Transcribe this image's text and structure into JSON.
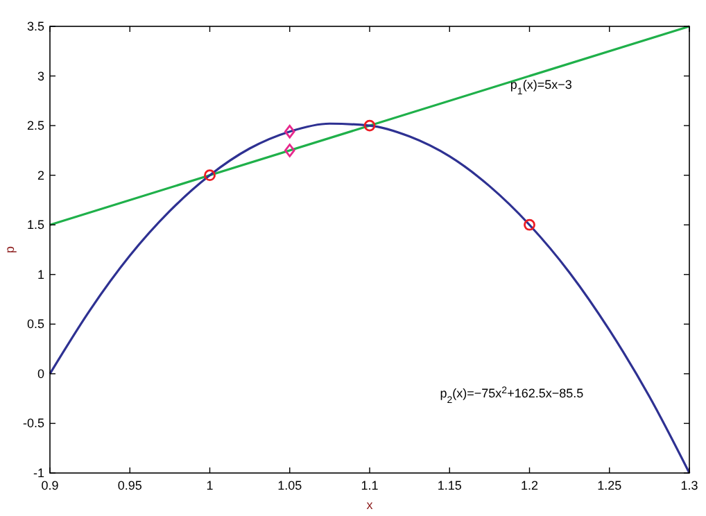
{
  "chart_data": {
    "type": "line",
    "xlabel": "x",
    "ylabel": "p",
    "xlim": [
      0.9,
      1.3
    ],
    "ylim": [
      -1,
      3.5
    ],
    "xticks": [
      0.9,
      0.95,
      1,
      1.05,
      1.1,
      1.15,
      1.2,
      1.25,
      1.3
    ],
    "yticks": [
      -1,
      -0.5,
      0,
      0.5,
      1,
      1.5,
      2,
      2.5,
      3,
      3.5
    ],
    "grid": false,
    "series": [
      {
        "color": "#1fb04a",
        "marker": "none",
        "x": [
          0.9,
          1.3
        ],
        "values": [
          1.5,
          3.5
        ]
      },
      {
        "color": "#2e3192",
        "marker": "none",
        "x": [
          0.9,
          0.925,
          0.95,
          0.975,
          1,
          1.025,
          1.05,
          1.075,
          1.1,
          1.125,
          1.15,
          1.175,
          1.2,
          1.225,
          1.25,
          1.275,
          1.3
        ],
        "values": [
          0,
          0.64,
          1.19,
          1.64,
          2,
          2.27,
          2.44,
          2.52,
          2.5,
          2.39,
          2.19,
          1.89,
          1.5,
          1.02,
          0.44,
          -0.23,
          -1
        ]
      },
      {
        "type": "scatter",
        "color": "#ec1c24",
        "marker": "circle",
        "x": [
          1,
          1.1,
          1.2
        ],
        "values": [
          2,
          2.5,
          1.5
        ]
      },
      {
        "type": "scatter",
        "color": "#e6288c",
        "marker": "diamond",
        "x": [
          1.05,
          1.05
        ],
        "values": [
          2.44,
          2.25
        ]
      }
    ],
    "annotations": [
      "p$_{1}$(x)=5x−3",
      "p$_{2}$(x)=−75x$^{2}$+162.5x−85.5"
    ]
  }
}
